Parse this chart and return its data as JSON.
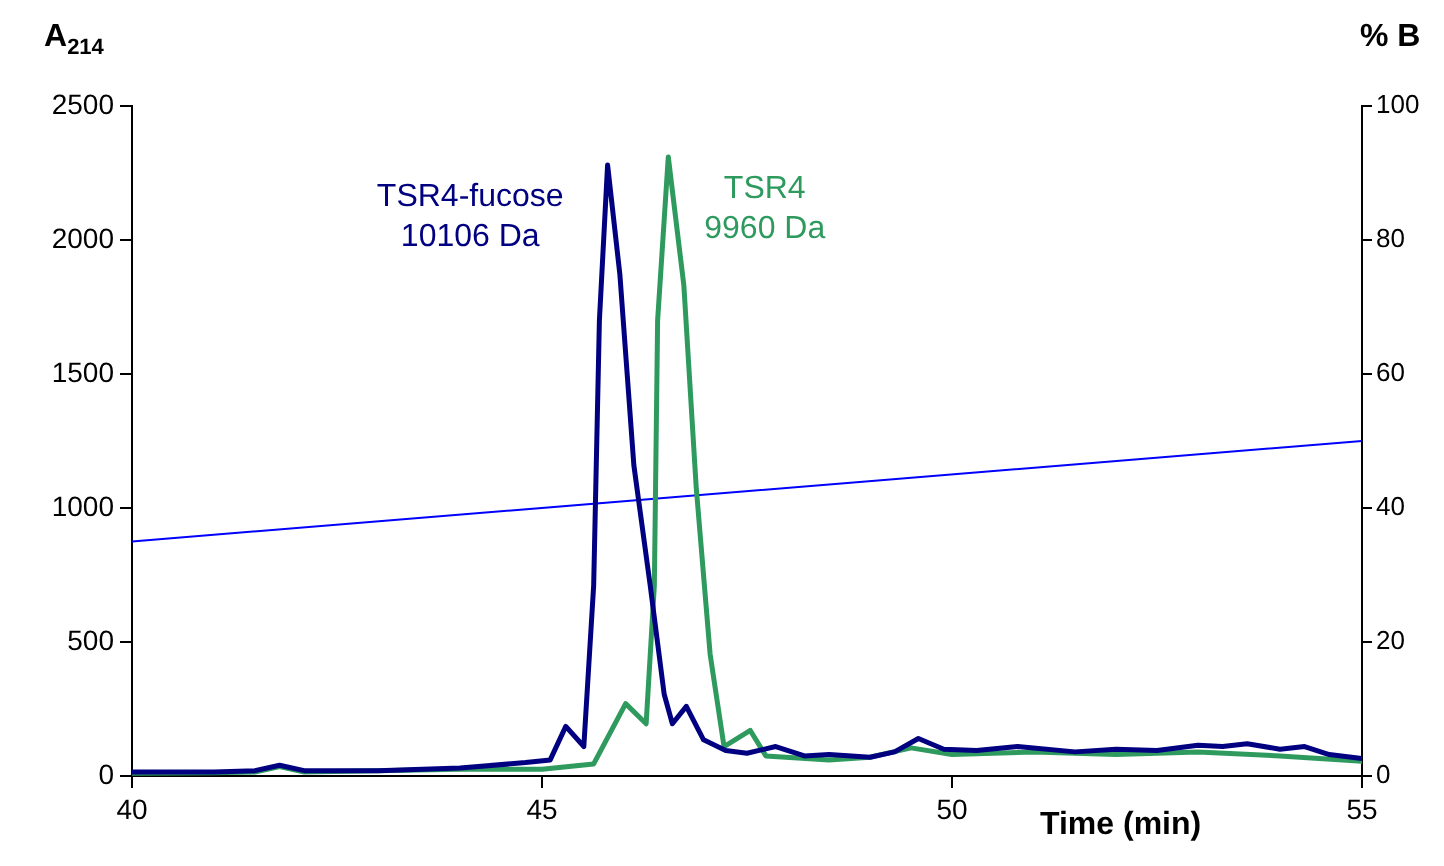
{
  "chart_data": {
    "type": "line",
    "ylabel": "A$_{214}$",
    "y2label": "% B",
    "xlabel": "Time (min)",
    "xlim": [
      40,
      55
    ],
    "xticks": [
      40,
      45,
      50,
      55
    ],
    "ylim": [
      0,
      2500
    ],
    "yticks": [
      0,
      500,
      1000,
      1500,
      2000,
      2500
    ],
    "y2lim": [
      0,
      100
    ],
    "y2ticks": [
      0,
      20,
      40,
      60,
      80,
      100
    ],
    "grid": false,
    "legend": false,
    "marker": "none",
    "line_style": "solid",
    "series": [
      {
        "name": "TSR4-fucose\n10106 Da",
        "color": "#000080",
        "x": [
          40,
          41,
          41.5,
          41.8,
          42.1,
          43,
          44,
          44.8,
          45.1,
          45.29,
          45.51,
          45.63,
          45.7,
          45.8,
          45.95,
          46.12,
          46.32,
          46.49,
          46.59,
          46.76,
          46.97,
          47.24,
          47.5,
          47.85,
          48.2,
          48.5,
          49,
          49.3,
          49.59,
          49.9,
          50.3,
          50.8,
          51.5,
          52,
          52.5,
          53,
          53.3,
          53.6,
          54,
          54.3,
          54.6,
          55
        ],
        "values": [
          15,
          15,
          20,
          40,
          20,
          20,
          30,
          50,
          60,
          185,
          110,
          710,
          1700,
          2280,
          1870,
          1160,
          710,
          305,
          195,
          260,
          135,
          95,
          85,
          110,
          75,
          80,
          70,
          90,
          140,
          100,
          95,
          110,
          90,
          100,
          95,
          115,
          110,
          120,
          100,
          110,
          80,
          65
        ]
      },
      {
        "name": "TSR4\n9960 Da",
        "color": "#2e9a5e",
        "x": [
          40,
          41,
          41.5,
          41.8,
          42.1,
          43,
          44,
          45,
          45.63,
          46.02,
          46.27,
          46.37,
          46.41,
          46.54,
          46.73,
          46.88,
          47.05,
          47.22,
          47.54,
          47.73,
          48.5,
          49,
          49.5,
          50,
          50.5,
          51,
          52,
          53,
          54,
          55
        ],
        "values": [
          10,
          12,
          15,
          35,
          15,
          20,
          25,
          25,
          45,
          270,
          195,
          710,
          1700,
          2310,
          1830,
          1080,
          455,
          110,
          170,
          75,
          60,
          70,
          105,
          80,
          85,
          90,
          80,
          90,
          75,
          55
        ]
      },
      {
        "axis": "y2",
        "color": "#0000ff",
        "x": [
          40,
          55
        ],
        "values": [
          35,
          50
        ]
      }
    ]
  }
}
